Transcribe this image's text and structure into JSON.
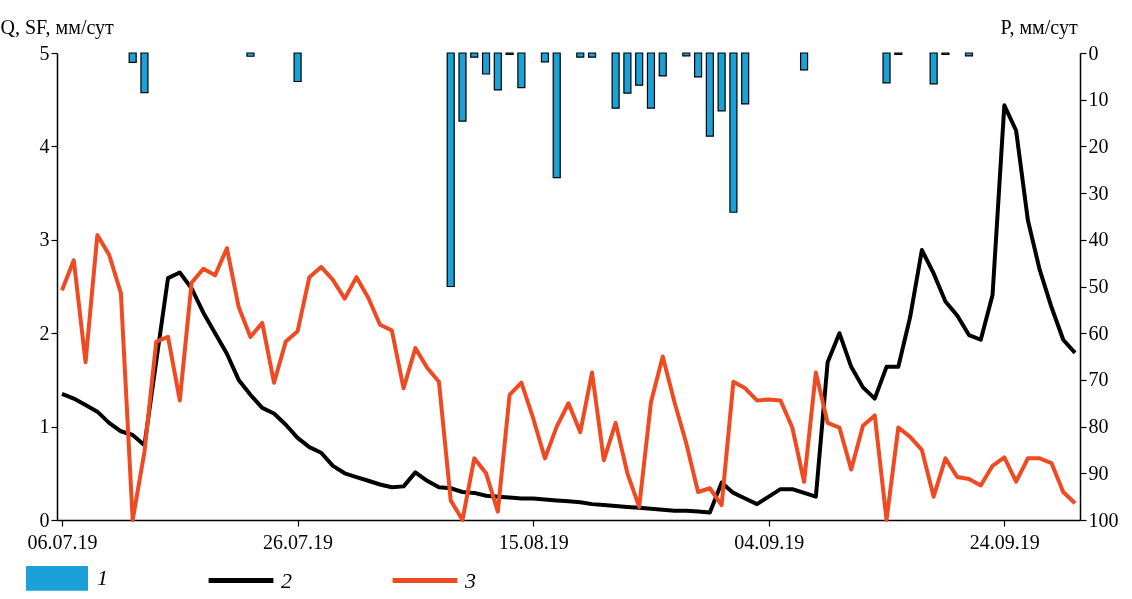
{
  "chart_data": {
    "type": "line",
    "ylabel": "Q, SF,  мм/сут",
    "y2label": "P, мм/сут",
    "x": [
      "2019-07-06",
      "2019-07-07",
      "2019-07-08",
      "2019-07-09",
      "2019-07-10",
      "2019-07-11",
      "2019-07-12",
      "2019-07-13",
      "2019-07-14",
      "2019-07-15",
      "2019-07-16",
      "2019-07-17",
      "2019-07-18",
      "2019-07-19",
      "2019-07-20",
      "2019-07-21",
      "2019-07-22",
      "2019-07-23",
      "2019-07-24",
      "2019-07-25",
      "2019-07-26",
      "2019-07-27",
      "2019-07-28",
      "2019-07-29",
      "2019-07-30",
      "2019-07-31",
      "2019-08-01",
      "2019-08-02",
      "2019-08-03",
      "2019-08-04",
      "2019-08-05",
      "2019-08-06",
      "2019-08-07",
      "2019-08-08",
      "2019-08-09",
      "2019-08-10",
      "2019-08-11",
      "2019-08-12",
      "2019-08-13",
      "2019-08-14",
      "2019-08-15",
      "2019-08-16",
      "2019-08-17",
      "2019-08-18",
      "2019-08-19",
      "2019-08-20",
      "2019-08-21",
      "2019-08-22",
      "2019-08-23",
      "2019-08-24",
      "2019-08-25",
      "2019-08-26",
      "2019-08-27",
      "2019-08-28",
      "2019-08-29",
      "2019-08-30",
      "2019-08-31",
      "2019-09-01",
      "2019-09-02",
      "2019-09-03",
      "2019-09-04",
      "2019-09-05",
      "2019-09-06",
      "2019-09-07",
      "2019-09-08",
      "2019-09-09",
      "2019-09-10",
      "2019-09-11",
      "2019-09-12",
      "2019-09-13",
      "2019-09-14",
      "2019-09-15",
      "2019-09-16",
      "2019-09-17",
      "2019-09-18",
      "2019-09-19",
      "2019-09-20",
      "2019-09-21",
      "2019-09-22",
      "2019-09-23",
      "2019-09-24",
      "2019-09-25",
      "2019-09-26",
      "2019-09-27",
      "2019-09-28",
      "2019-09-29",
      "2019-09-30"
    ],
    "xlim": [
      "2019-07-06",
      "2019-09-30"
    ],
    "xticks": [
      {
        "value": "2019-07-06",
        "label": "06.07.19"
      },
      {
        "value": "2019-07-26",
        "label": "26.07.19"
      },
      {
        "value": "2019-08-15",
        "label": "15.08.19"
      },
      {
        "value": "2019-09-04",
        "label": "04.09.19"
      },
      {
        "value": "2019-09-24",
        "label": "24.09.19"
      }
    ],
    "ylim": [
      0,
      5
    ],
    "yticks": [
      0,
      1,
      2,
      3,
      4,
      5
    ],
    "y2lim": [
      100,
      0
    ],
    "y2ticks": [
      0,
      10,
      20,
      30,
      40,
      50,
      60,
      70,
      80,
      90,
      100
    ],
    "legend": "bottom",
    "series": [
      {
        "name": "1",
        "type": "bar",
        "axis": "y2",
        "color": "#1ba1d8",
        "x": [
          "2019-07-12",
          "2019-07-13",
          "2019-07-22",
          "2019-07-26",
          "2019-08-08",
          "2019-08-09",
          "2019-08-10",
          "2019-08-11",
          "2019-08-12",
          "2019-08-13",
          "2019-08-14",
          "2019-08-16",
          "2019-08-17",
          "2019-08-19",
          "2019-08-20",
          "2019-08-22",
          "2019-08-23",
          "2019-08-24",
          "2019-08-25",
          "2019-08-26",
          "2019-08-28",
          "2019-08-29",
          "2019-08-30",
          "2019-08-31",
          "2019-09-01",
          "2019-09-02",
          "2019-09-07",
          "2019-09-14",
          "2019-09-15",
          "2019-09-18",
          "2019-09-19",
          "2019-09-21"
        ],
        "values": [
          2,
          8.5,
          0.7,
          6.1,
          50,
          14.6,
          0.9,
          4.5,
          7.9,
          0.3,
          7.4,
          1.9,
          26.7,
          0.9,
          0.9,
          11.8,
          8.6,
          6.9,
          11.8,
          4.9,
          0.6,
          5.1,
          17.8,
          12.4,
          34.1,
          10.9,
          3.6,
          6.4,
          0.3,
          6.6,
          0.3,
          0.6
        ]
      },
      {
        "name": "2",
        "color": "#000000",
        "values": [
          1.35,
          1.3,
          1.23,
          1.16,
          1.04,
          0.95,
          0.91,
          0.8,
          1.7,
          2.59,
          2.65,
          2.48,
          2.22,
          2.0,
          1.78,
          1.5,
          1.34,
          1.2,
          1.14,
          1.02,
          0.88,
          0.78,
          0.72,
          0.58,
          0.5,
          0.46,
          0.42,
          0.38,
          0.35,
          0.36,
          0.51,
          0.42,
          0.35,
          0.34,
          0.3,
          0.29,
          0.26,
          0.25,
          0.24,
          0.23,
          0.23,
          0.22,
          0.21,
          0.2,
          0.19,
          0.17,
          0.16,
          0.15,
          0.14,
          0.13,
          0.12,
          0.11,
          0.1,
          0.1,
          0.09,
          0.08,
          0.4,
          0.29,
          0.23,
          0.17,
          0.25,
          0.33,
          0.33,
          0.29,
          0.25,
          1.69,
          2.0,
          1.64,
          1.42,
          1.3,
          1.64,
          1.64,
          2.17,
          2.89,
          2.64,
          2.34,
          2.19,
          1.98,
          1.93,
          2.41,
          4.44,
          4.17,
          3.21,
          2.68,
          2.28,
          1.93,
          1.79
        ]
      },
      {
        "name": "3",
        "color": "#f04a23",
        "values": [
          2.46,
          2.78,
          1.69,
          3.05,
          2.84,
          2.43,
          0,
          0.73,
          1.91,
          1.96,
          1.28,
          2.54,
          2.69,
          2.62,
          2.91,
          2.28,
          1.96,
          2.11,
          1.47,
          1.91,
          2.02,
          2.6,
          2.71,
          2.57,
          2.37,
          2.6,
          2.38,
          2.09,
          2.03,
          1.41,
          1.84,
          1.63,
          1.48,
          0.21,
          0,
          0.66,
          0.5,
          0.09,
          1.34,
          1.47,
          1.09,
          0.66,
          1.0,
          1.25,
          0.94,
          1.58,
          0.64,
          1.04,
          0.5,
          0.14,
          1.26,
          1.75,
          1.26,
          0.82,
          0.3,
          0.34,
          0.16,
          1.48,
          1.41,
          1.28,
          1.29,
          1.28,
          0.99,
          0.41,
          1.58,
          1.04,
          0.99,
          0.54,
          1.01,
          1.12,
          0,
          0.99,
          0.89,
          0.75,
          0.25,
          0.66,
          0.46,
          0.44,
          0.37,
          0.58,
          0.67,
          0.41,
          0.66,
          0.66,
          0.61,
          0.3,
          0.18
        ]
      }
    ]
  }
}
